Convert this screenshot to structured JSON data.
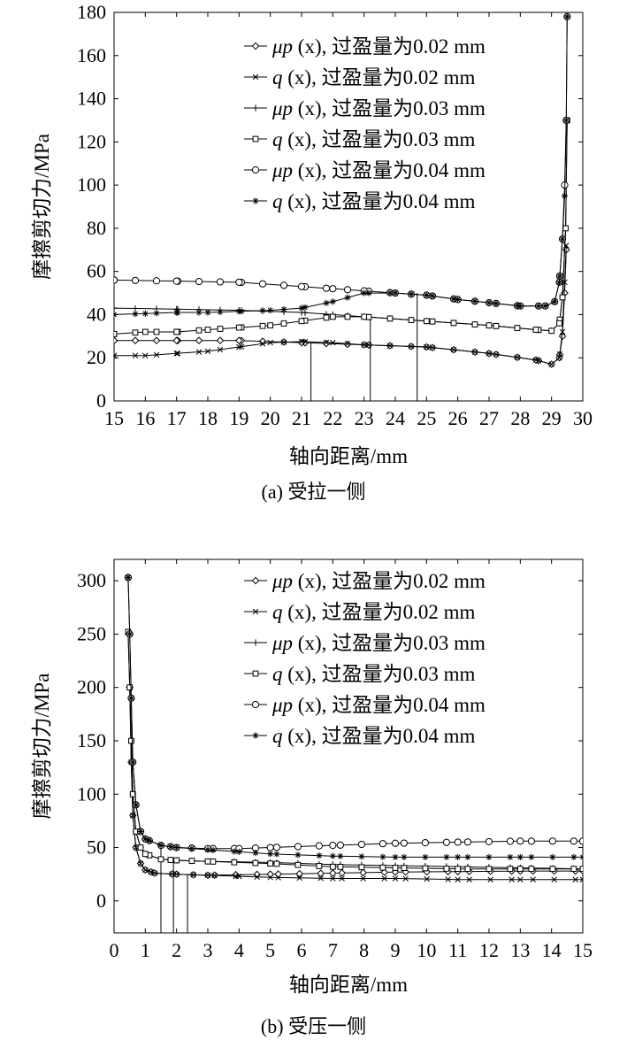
{
  "chart_data": [
    {
      "type": "line",
      "caption": "(a) 受拉一侧",
      "xlabel": "轴向距离/mm",
      "ylabel": "摩擦剪切力/MPa",
      "xlim": [
        15,
        30
      ],
      "ylim": [
        0,
        180
      ],
      "xticks": [
        15,
        16,
        17,
        18,
        19,
        20,
        21,
        22,
        23,
        24,
        25,
        26,
        27,
        28,
        29,
        30
      ],
      "yticks": [
        0,
        20,
        40,
        60,
        80,
        100,
        120,
        140,
        160,
        180
      ],
      "legend_position": "top-right",
      "legend": [
        {
          "prefix": "μp",
          "suffix": " (x), 过盈量为0.02 mm",
          "marker": "diamond"
        },
        {
          "prefix": "q",
          "suffix": " (x), 过盈量为0.02 mm",
          "marker": "x"
        },
        {
          "prefix": "μp",
          "suffix": " (x), 过盈量为0.03 mm",
          "marker": "plus"
        },
        {
          "prefix": "q",
          "suffix": " (x), 过盈量为0.03 mm",
          "marker": "square"
        },
        {
          "prefix": "μp",
          "suffix": " (x), 过盈量为0.04 mm",
          "marker": "circle"
        },
        {
          "prefix": "q",
          "suffix": " (x), 过盈量为0.04 mm",
          "marker": "star"
        }
      ],
      "vlines": [
        {
          "x": 21.3,
          "y": 27
        },
        {
          "x": 23.2,
          "y": 39
        },
        {
          "x": 24.7,
          "y": 50
        }
      ],
      "series": [
        {
          "marker": "diamond",
          "points": [
            [
              15,
              28
            ],
            [
              17,
              28
            ],
            [
              19,
              28
            ],
            [
              21,
              27
            ],
            [
              23,
              26
            ],
            [
              25,
              25
            ],
            [
              27,
              22
            ],
            [
              28.5,
              19
            ],
            [
              29,
              17
            ],
            [
              29.25,
              20
            ],
            [
              29.35,
              30
            ],
            [
              29.42,
              50
            ],
            [
              29.47,
              70
            ]
          ]
        },
        {
          "marker": "x",
          "points": [
            [
              15,
              21
            ],
            [
              16,
              21
            ],
            [
              17,
              22
            ],
            [
              18,
              23
            ],
            [
              19,
              25
            ],
            [
              20,
              27
            ],
            [
              21,
              27.5
            ],
            [
              22,
              27
            ],
            [
              23,
              26
            ],
            [
              25,
              25
            ],
            [
              27,
              22
            ],
            [
              28.5,
              19
            ],
            [
              29,
              17
            ],
            [
              29.25,
              20
            ],
            [
              29.35,
              32
            ],
            [
              29.42,
              55
            ],
            [
              29.47,
              72
            ]
          ]
        },
        {
          "marker": "plus",
          "points": [
            [
              15,
              43
            ],
            [
              17,
              42.5
            ],
            [
              19,
              42
            ],
            [
              21,
              41
            ],
            [
              22,
              40
            ],
            [
              23,
              39
            ],
            [
              25,
              37
            ],
            [
              27,
              35
            ],
            [
              28.5,
              33
            ],
            [
              29,
              32.5
            ],
            [
              29.25,
              36
            ],
            [
              29.35,
              48
            ],
            [
              29.45,
              80
            ],
            [
              29.5,
              130
            ]
          ]
        },
        {
          "marker": "square",
          "points": [
            [
              15,
              31
            ],
            [
              16,
              32
            ],
            [
              17,
              32
            ],
            [
              18,
              33
            ],
            [
              19,
              34
            ],
            [
              20,
              35
            ],
            [
              21,
              37
            ],
            [
              22,
              39
            ],
            [
              23,
              39
            ],
            [
              25,
              37
            ],
            [
              27,
              35
            ],
            [
              28.5,
              33
            ],
            [
              29,
              32.5
            ],
            [
              29.25,
              36
            ],
            [
              29.35,
              48
            ],
            [
              29.45,
              80
            ],
            [
              29.5,
              130
            ]
          ]
        },
        {
          "marker": "circle",
          "points": [
            [
              15,
              56
            ],
            [
              17,
              55.5
            ],
            [
              19,
              55
            ],
            [
              21,
              53
            ],
            [
              22,
              52
            ],
            [
              23,
              51
            ],
            [
              24,
              50
            ],
            [
              25,
              49
            ],
            [
              26,
              47
            ],
            [
              27,
              45.5
            ],
            [
              28,
              44
            ],
            [
              28.8,
              44
            ],
            [
              29.1,
              46
            ],
            [
              29.25,
              55
            ],
            [
              29.35,
              75
            ],
            [
              29.42,
              100
            ],
            [
              29.47,
              130
            ],
            [
              29.5,
              178
            ]
          ]
        },
        {
          "marker": "star",
          "points": [
            [
              15,
              40
            ],
            [
              16,
              40.5
            ],
            [
              17,
              41
            ],
            [
              18,
              41
            ],
            [
              19,
              41.5
            ],
            [
              20,
              42
            ],
            [
              21,
              43
            ],
            [
              22,
              46
            ],
            [
              23,
              50
            ],
            [
              24,
              50
            ],
            [
              25,
              49
            ],
            [
              26,
              47
            ],
            [
              27,
              45.5
            ],
            [
              28,
              44
            ],
            [
              28.8,
              44
            ],
            [
              29.1,
              46
            ],
            [
              29.25,
              55
            ],
            [
              29.35,
              75
            ],
            [
              29.42,
              95
            ],
            [
              29.47,
              130
            ],
            [
              29.5,
              178
            ]
          ]
        }
      ]
    },
    {
      "type": "line",
      "caption": "(b) 受压一侧",
      "xlabel": "轴向距离/mm",
      "ylabel": "摩擦剪切力/MPa",
      "xlim": [
        0,
        15
      ],
      "ylim": [
        -30,
        320
      ],
      "xticks": [
        0,
        1,
        2,
        3,
        4,
        5,
        6,
        7,
        8,
        9,
        10,
        11,
        12,
        13,
        14,
        15
      ],
      "yticks": [
        0,
        50,
        100,
        150,
        200,
        250,
        300
      ],
      "legend_position": "top-right",
      "legend": [
        {
          "prefix": "μp",
          "suffix": " (x), 过盈量为0.02 mm",
          "marker": "diamond"
        },
        {
          "prefix": "q",
          "suffix": " (x), 过盈量为0.02 mm",
          "marker": "x"
        },
        {
          "prefix": "μp",
          "suffix": " (x), 过盈量为0.03 mm",
          "marker": "plus"
        },
        {
          "prefix": "q",
          "suffix": " (x), 过盈量为0.03 mm",
          "marker": "square"
        },
        {
          "prefix": "μp",
          "suffix": " (x), 过盈量为0.04 mm",
          "marker": "circle"
        },
        {
          "prefix": "q",
          "suffix": " (x), 过盈量为0.04 mm",
          "marker": "star"
        }
      ],
      "vlines": [
        {
          "x": 1.5,
          "y": 51
        },
        {
          "x": 1.9,
          "y": 38
        },
        {
          "x": 2.35,
          "y": 25
        }
      ],
      "series": [
        {
          "marker": "diamond",
          "points": [
            [
              0.5,
              200
            ],
            [
              0.55,
              130
            ],
            [
              0.6,
              80
            ],
            [
              0.7,
              50
            ],
            [
              0.85,
              35
            ],
            [
              1,
              29
            ],
            [
              1.3,
              26
            ],
            [
              2,
              25
            ],
            [
              3,
              24
            ],
            [
              5,
              25
            ],
            [
              7,
              26
            ],
            [
              9,
              27
            ],
            [
              11,
              27.5
            ],
            [
              13,
              28
            ],
            [
              15,
              28
            ]
          ]
        },
        {
          "marker": "x",
          "points": [
            [
              0.5,
              200
            ],
            [
              0.55,
              130
            ],
            [
              0.6,
              80
            ],
            [
              0.7,
              50
            ],
            [
              0.85,
              35
            ],
            [
              1,
              29
            ],
            [
              1.3,
              26
            ],
            [
              2,
              25
            ],
            [
              3,
              24
            ],
            [
              4,
              23
            ],
            [
              5,
              22
            ],
            [
              7,
              21
            ],
            [
              9,
              21
            ],
            [
              11,
              20
            ],
            [
              13,
              20
            ],
            [
              15,
              20
            ]
          ]
        },
        {
          "marker": "plus",
          "points": [
            [
              0.45,
              250
            ],
            [
              0.5,
              200
            ],
            [
              0.55,
              150
            ],
            [
              0.6,
              100
            ],
            [
              0.7,
              65
            ],
            [
              0.85,
              50
            ],
            [
              1,
              44
            ],
            [
              1.5,
              39
            ],
            [
              2,
              38
            ],
            [
              3,
              37
            ],
            [
              5,
              36
            ],
            [
              7,
              34
            ],
            [
              9,
              33
            ],
            [
              11,
              32
            ],
            [
              13,
              31
            ],
            [
              15,
              30
            ]
          ]
        },
        {
          "marker": "square",
          "points": [
            [
              0.45,
              252
            ],
            [
              0.5,
              200
            ],
            [
              0.55,
              150
            ],
            [
              0.6,
              100
            ],
            [
              0.7,
              65
            ],
            [
              0.85,
              50
            ],
            [
              1,
              44
            ],
            [
              1.5,
              39
            ],
            [
              2,
              38
            ],
            [
              3,
              37
            ],
            [
              5,
              35
            ],
            [
              7,
              32
            ],
            [
              9,
              31
            ],
            [
              11,
              30
            ],
            [
              13,
              30
            ],
            [
              15,
              30
            ]
          ]
        },
        {
          "marker": "circle",
          "points": [
            [
              0.45,
              303
            ],
            [
              0.5,
              250
            ],
            [
              0.55,
              190
            ],
            [
              0.6,
              130
            ],
            [
              0.7,
              90
            ],
            [
              0.85,
              65
            ],
            [
              1,
              58
            ],
            [
              1.5,
              52
            ],
            [
              2,
              50
            ],
            [
              3,
              49
            ],
            [
              4,
              49
            ],
            [
              5,
              50
            ],
            [
              7,
              52
            ],
            [
              9,
              54
            ],
            [
              11,
              55
            ],
            [
              13,
              56
            ],
            [
              15,
              56
            ]
          ]
        },
        {
          "marker": "star",
          "points": [
            [
              0.45,
              303
            ],
            [
              0.5,
              250
            ],
            [
              0.55,
              190
            ],
            [
              0.6,
              130
            ],
            [
              0.7,
              90
            ],
            [
              0.85,
              65
            ],
            [
              1,
              58
            ],
            [
              1.5,
              52
            ],
            [
              2,
              50
            ],
            [
              3,
              48
            ],
            [
              4,
              46
            ],
            [
              5,
              44
            ],
            [
              7,
              42
            ],
            [
              9,
              41
            ],
            [
              11,
              41
            ],
            [
              13,
              41
            ],
            [
              15,
              41
            ]
          ]
        }
      ]
    }
  ]
}
